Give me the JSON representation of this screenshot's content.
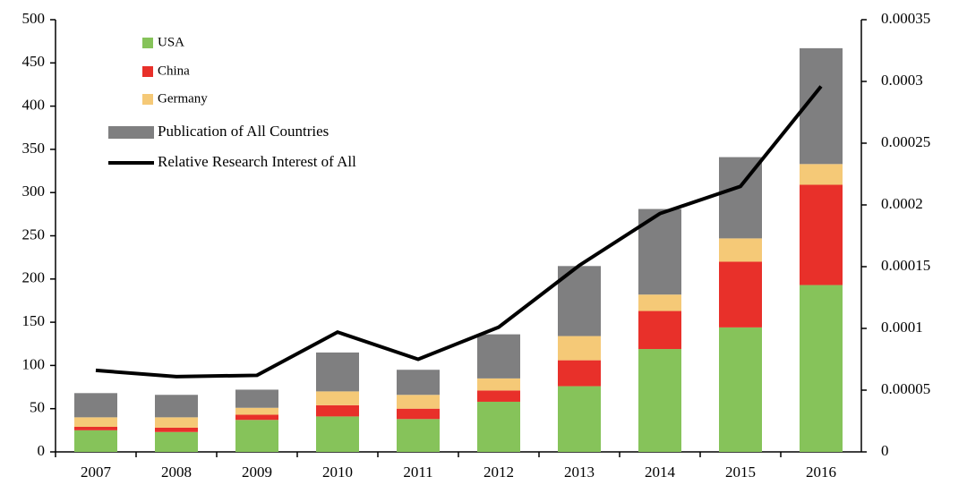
{
  "chart_data": {
    "type": "bar",
    "categories": [
      "2007",
      "2008",
      "2009",
      "2010",
      "2011",
      "2012",
      "2013",
      "2014",
      "2015",
      "2016"
    ],
    "stacked": true,
    "series": [
      {
        "name": "USA",
        "color": "#86c35a",
        "values": [
          25,
          23,
          37,
          41,
          38,
          58,
          76,
          119,
          144,
          193
        ]
      },
      {
        "name": "China",
        "color": "#e8302a",
        "values": [
          4,
          5,
          6,
          13,
          12,
          13,
          30,
          44,
          76,
          116
        ]
      },
      {
        "name": "Germany",
        "color": "#f5c977",
        "values": [
          11,
          12,
          8,
          16,
          16,
          14,
          28,
          19,
          27,
          24
        ]
      },
      {
        "name": "Publication of All Countries",
        "color": "#7f7f80",
        "values": [
          28,
          26,
          21,
          45,
          29,
          51,
          81,
          99,
          94,
          134
        ]
      },
      {
        "name": "Relative Research Interest of All",
        "type": "line",
        "axis": "y2",
        "color": "#000000",
        "values": [
          6.6e-05,
          6.1e-05,
          6.2e-05,
          9.7e-05,
          7.5e-05,
          0.000101,
          0.000151,
          0.000193,
          0.000215,
          0.000296
        ]
      }
    ],
    "ylim": [
      0,
      500
    ],
    "yticks": [
      0,
      50,
      100,
      150,
      200,
      250,
      300,
      350,
      400,
      450,
      500
    ],
    "y2lim": [
      0,
      0.00035
    ],
    "y2ticks": [
      0,
      5e-05,
      0.0001,
      0.00015,
      0.0002,
      0.00025,
      0.0003,
      0.00035
    ],
    "legend": "upper-left"
  }
}
